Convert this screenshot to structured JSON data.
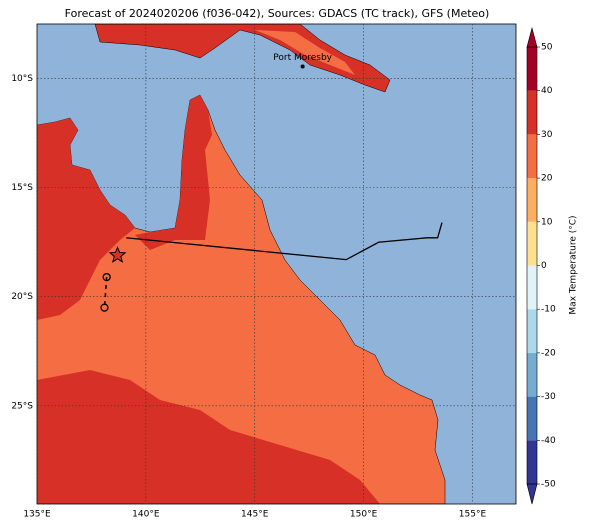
{
  "chart_data": {
    "type": "map",
    "title": "Forecast of 2024020206 (f036-042), Sources: GDACS (TC track), GFS (Meteo)",
    "xlim": [
      135,
      157
    ],
    "ylim": [
      -29.5,
      -7.5
    ],
    "xticks": [
      {
        "value": 135,
        "label": "135°E"
      },
      {
        "value": 140,
        "label": "140°E"
      },
      {
        "value": 145,
        "label": "145°E"
      },
      {
        "value": 150,
        "label": "150°E"
      },
      {
        "value": 155,
        "label": "155°E"
      }
    ],
    "yticks": [
      {
        "value": -10,
        "label": "10°S"
      },
      {
        "value": -15,
        "label": "15°S"
      },
      {
        "value": -20,
        "label": "20°S"
      },
      {
        "value": -25,
        "label": "25°S"
      }
    ],
    "grid": true,
    "cities": [
      {
        "name": "Port Moresby",
        "lon": 147.2,
        "lat": -9.45
      }
    ],
    "track": {
      "lon": [
        139.1,
        149.2,
        150.7,
        152.9,
        153.4,
        153.6
      ],
      "lat": [
        -17.3,
        -18.3,
        -17.5,
        -17.3,
        -17.3,
        -16.6
      ],
      "color": "#000000"
    },
    "current_position": {
      "lon": 138.7,
      "lat": -18.1
    },
    "forecast_positions": {
      "lon": [
        138.2,
        138.1
      ],
      "lat": [
        -19.1,
        -20.5
      ]
    },
    "colorbar": {
      "label": "Max Temperature (°C)",
      "levels": [
        -50,
        -40,
        -30,
        -20,
        -10,
        0,
        10,
        20,
        30,
        40,
        50
      ],
      "colors": [
        "#313695",
        "#4575b4",
        "#74add1",
        "#abd9e9",
        "#e0f3f8",
        "#fee090",
        "#fdae61",
        "#f46d43",
        "#d73027",
        "#a50026"
      ],
      "ticks": [
        -50,
        -40,
        -30,
        -20,
        -10,
        0,
        10,
        20,
        30,
        40,
        50
      ]
    }
  }
}
